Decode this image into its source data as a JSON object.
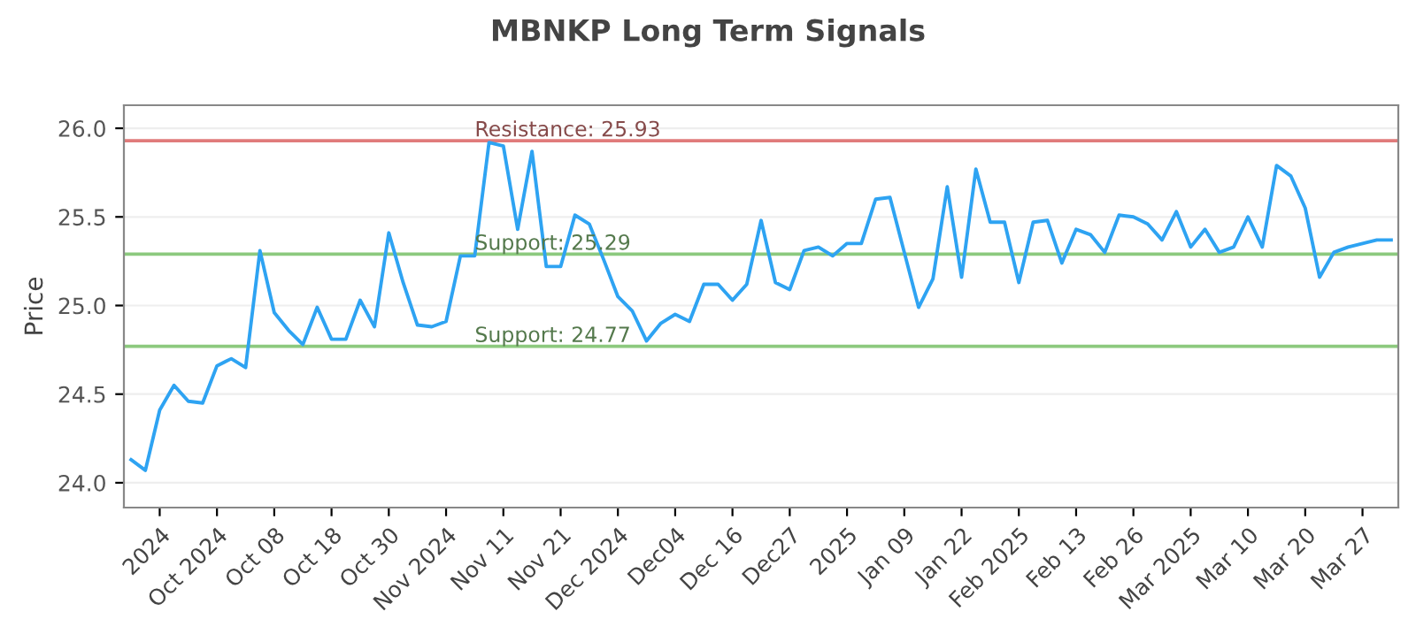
{
  "chart_data": {
    "type": "line",
    "title": "MBNKP Long Term Signals",
    "ylabel": "Price",
    "categories": [
      null,
      null,
      "2024",
      null,
      null,
      null,
      "Oct 2024",
      null,
      null,
      null,
      "Oct 08",
      null,
      null,
      null,
      "Oct 18",
      null,
      null,
      null,
      "Oct 30",
      null,
      null,
      null,
      "Nov 2024",
      null,
      null,
      null,
      "Nov 11",
      null,
      null,
      null,
      "Nov 21",
      null,
      null,
      null,
      "Dec 2024",
      null,
      null,
      null,
      "Dec04",
      null,
      null,
      null,
      "Dec 16",
      null,
      null,
      null,
      "Dec27",
      null,
      null,
      null,
      "2025",
      null,
      null,
      null,
      "Jan 09",
      null,
      null,
      null,
      "Jan 22",
      null,
      null,
      null,
      "Feb 2025",
      null,
      null,
      null,
      "Feb 13",
      null,
      null,
      null,
      "Feb 26",
      null,
      null,
      null,
      "Mar 2025",
      null,
      null,
      null,
      "Mar 10",
      null,
      null,
      null,
      "Mar 20",
      null,
      null,
      null,
      "Mar 27",
      null,
      null
    ],
    "series": [
      {
        "color": "#2ea3f2",
        "values": [
          24.13,
          24.07,
          24.41,
          24.55,
          24.46,
          24.45,
          24.66,
          24.7,
          24.65,
          25.31,
          24.96,
          24.86,
          24.78,
          24.99,
          24.81,
          24.81,
          25.03,
          24.88,
          25.41,
          25.13,
          24.89,
          24.88,
          24.91,
          25.28,
          25.28,
          25.92,
          25.9,
          25.43,
          25.87,
          25.22,
          25.22,
          25.51,
          25.46,
          25.26,
          25.05,
          24.97,
          24.8,
          24.9,
          24.95,
          24.91,
          25.12,
          25.12,
          25.03,
          25.12,
          25.48,
          25.13,
          25.09,
          25.31,
          25.33,
          25.28,
          25.35,
          25.35,
          25.6,
          25.61,
          25.3,
          24.99,
          25.15,
          25.67,
          25.16,
          25.77,
          25.47,
          25.47,
          25.13,
          25.47,
          25.48,
          25.24,
          25.43,
          25.4,
          25.3,
          25.51,
          25.5,
          25.46,
          25.37,
          25.53,
          25.33,
          25.43,
          25.3,
          25.33,
          25.5,
          25.33,
          25.79,
          25.73,
          25.55,
          25.16,
          25.3,
          25.33,
          25.35,
          25.37,
          25.37
        ]
      }
    ],
    "ylim": [
      23.86,
      26.13
    ],
    "yticks": [
      {
        "value": 24.0,
        "label": "24.0"
      },
      {
        "value": 24.5,
        "label": "24.5"
      },
      {
        "value": 25.0,
        "label": "25.0"
      },
      {
        "value": 25.5,
        "label": "25.5"
      },
      {
        "value": 26.0,
        "label": "26.0"
      }
    ],
    "grid": "y",
    "legend": false,
    "marker": "none",
    "line_style": "solid",
    "ref_lines": [
      {
        "axis": "y",
        "value": 25.93,
        "label": "Resistance: 25.93",
        "color": "#e07b7b"
      },
      {
        "axis": "y",
        "value": 25.29,
        "label": "Support: 25.29",
        "color": "#8cc97e"
      },
      {
        "axis": "y",
        "value": 24.77,
        "label": "Support: 24.77",
        "color": "#8cc97e"
      }
    ]
  }
}
